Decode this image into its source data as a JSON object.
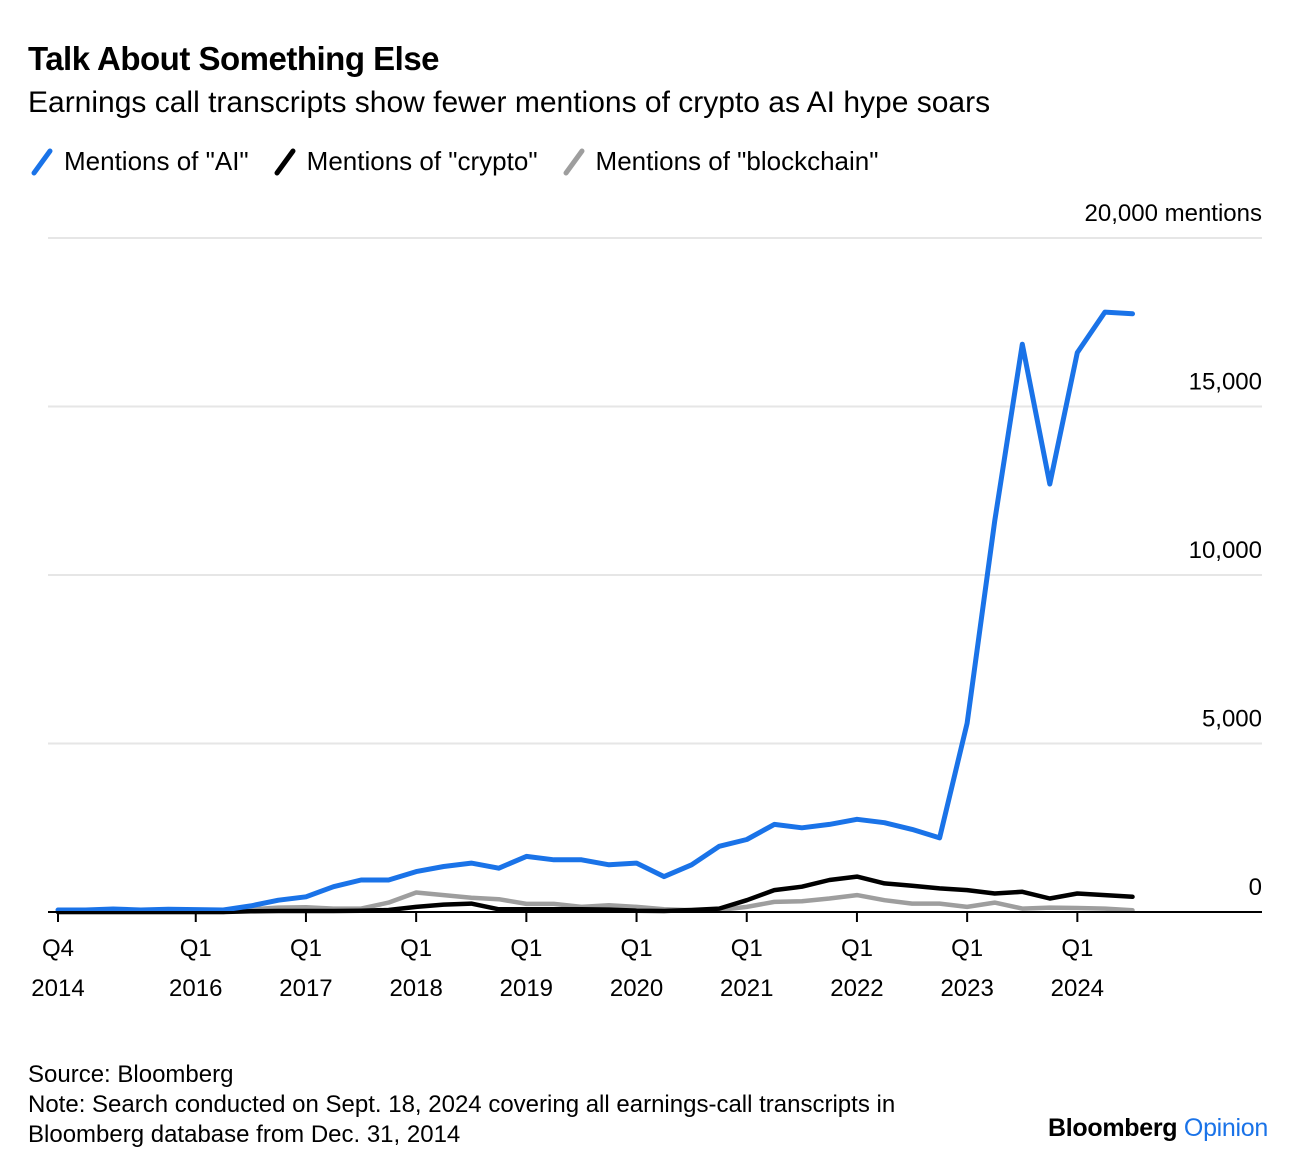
{
  "title": "Talk About Something Else",
  "subtitle": "Earnings call transcripts show fewer mentions of crypto as AI hype soars",
  "legend": [
    {
      "label": "Mentions of \"AI\"",
      "color": "#1a73e8"
    },
    {
      "label": "Mentions of \"crypto\"",
      "color": "#000000"
    },
    {
      "label": "Mentions of \"blockchain\"",
      "color": "#9e9e9e"
    }
  ],
  "footer": {
    "source": "Source: Bloomberg",
    "note_line1": "Note: Search conducted on Sept. 18, 2024 covering all earnings-call transcripts in",
    "note_line2": "Bloomberg database from Dec. 31, 2014"
  },
  "brand": {
    "name": "Bloomberg",
    "suffix": "Opinion"
  },
  "chart_data": {
    "type": "line",
    "x": [
      "Q4 2014",
      "Q1 2015",
      "Q2 2015",
      "Q3 2015",
      "Q4 2015",
      "Q1 2016",
      "Q2 2016",
      "Q3 2016",
      "Q4 2016",
      "Q1 2017",
      "Q2 2017",
      "Q3 2017",
      "Q4 2017",
      "Q1 2018",
      "Q2 2018",
      "Q3 2018",
      "Q4 2018",
      "Q1 2019",
      "Q2 2019",
      "Q3 2019",
      "Q4 2019",
      "Q1 2020",
      "Q2 2020",
      "Q3 2020",
      "Q4 2020",
      "Q1 2021",
      "Q2 2021",
      "Q3 2021",
      "Q4 2021",
      "Q1 2022",
      "Q2 2022",
      "Q3 2022",
      "Q4 2022",
      "Q1 2023",
      "Q2 2023",
      "Q3 2023",
      "Q4 2023",
      "Q1 2024",
      "Q2 2024",
      "Q3 2024"
    ],
    "series": [
      {
        "name": "Mentions of \"AI\"",
        "color": "#1a73e8",
        "values": [
          60,
          60,
          90,
          60,
          80,
          70,
          60,
          180,
          350,
          450,
          750,
          950,
          950,
          1200,
          1350,
          1450,
          1300,
          1650,
          1550,
          1550,
          1400,
          1450,
          1050,
          1400,
          1950,
          2150,
          2600,
          2500,
          2600,
          2750,
          2650,
          2450,
          2200,
          5600,
          11600,
          16850,
          12700,
          16600,
          17800,
          17750
        ]
      },
      {
        "name": "Mentions of \"crypto\"",
        "color": "#000000",
        "values": [
          0,
          0,
          0,
          0,
          0,
          0,
          0,
          20,
          30,
          30,
          30,
          40,
          60,
          150,
          220,
          250,
          80,
          80,
          80,
          80,
          70,
          40,
          30,
          60,
          100,
          350,
          650,
          750,
          950,
          1050,
          850,
          780,
          700,
          650,
          550,
          600,
          400,
          550,
          500,
          450
        ]
      },
      {
        "name": "Mentions of \"blockchain\"",
        "color": "#9e9e9e",
        "values": [
          0,
          0,
          0,
          0,
          0,
          0,
          0,
          80,
          130,
          140,
          100,
          100,
          280,
          580,
          500,
          420,
          380,
          240,
          240,
          150,
          200,
          150,
          80,
          50,
          60,
          150,
          300,
          320,
          400,
          500,
          350,
          250,
          250,
          150,
          280,
          100,
          130,
          120,
          100,
          50
        ]
      }
    ],
    "y_ticks": [
      "0",
      "5,000",
      "10,000",
      "15,000",
      "20,000 mentions"
    ],
    "x_ticks": [
      {
        "line1": "Q4",
        "line2": "2014",
        "index": 0
      },
      {
        "line1": "Q1",
        "line2": "2016",
        "index": 5
      },
      {
        "line1": "Q1",
        "line2": "2017",
        "index": 9
      },
      {
        "line1": "Q1",
        "line2": "2018",
        "index": 13
      },
      {
        "line1": "Q1",
        "line2": "2019",
        "index": 17
      },
      {
        "line1": "Q1",
        "line2": "2020",
        "index": 21
      },
      {
        "line1": "Q1",
        "line2": "2021",
        "index": 25
      },
      {
        "line1": "Q1",
        "line2": "2022",
        "index": 29
      },
      {
        "line1": "Q1",
        "line2": "2023",
        "index": 33
      },
      {
        "line1": "Q1",
        "line2": "2024",
        "index": 37
      }
    ],
    "ylim": [
      0,
      20000
    ],
    "grid": true,
    "legend_position": "top-left"
  }
}
